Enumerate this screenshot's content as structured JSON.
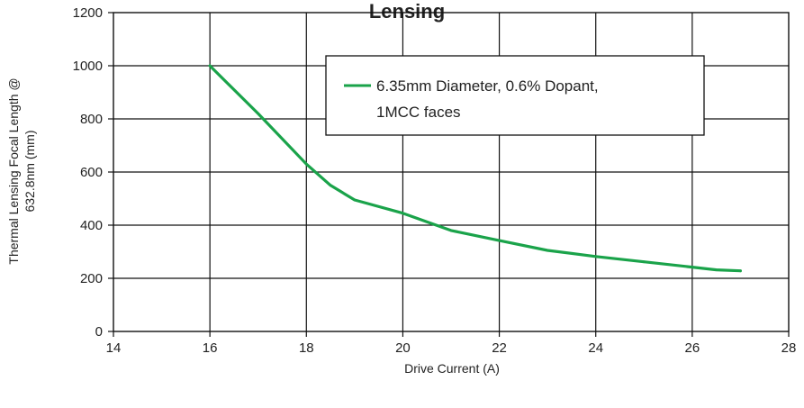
{
  "chart_data": {
    "type": "line",
    "title": "Lensing",
    "xlabel": "Drive Current (A)",
    "ylabel": [
      "Thermal Lensing Focal Length @",
      "632.8nm (mm)"
    ],
    "xlim": [
      14,
      28
    ],
    "ylim": [
      0,
      1200
    ],
    "xticks": [
      14,
      16,
      18,
      20,
      22,
      24,
      26,
      28
    ],
    "yticks": [
      0,
      200,
      400,
      600,
      800,
      1000,
      1200
    ],
    "grid": true,
    "legend_position": "top-right",
    "series": [
      {
        "name": [
          "6.35mm Diameter, 0.6% Dopant,",
          "1MCC faces"
        ],
        "color": "#1aa34a",
        "x": [
          16,
          17,
          18,
          18.5,
          19,
          20,
          21,
          22,
          23,
          24,
          25,
          26,
          26.5,
          27
        ],
        "y": [
          1000,
          820,
          630,
          550,
          495,
          445,
          380,
          342,
          305,
          282,
          262,
          242,
          232,
          228
        ]
      }
    ]
  }
}
